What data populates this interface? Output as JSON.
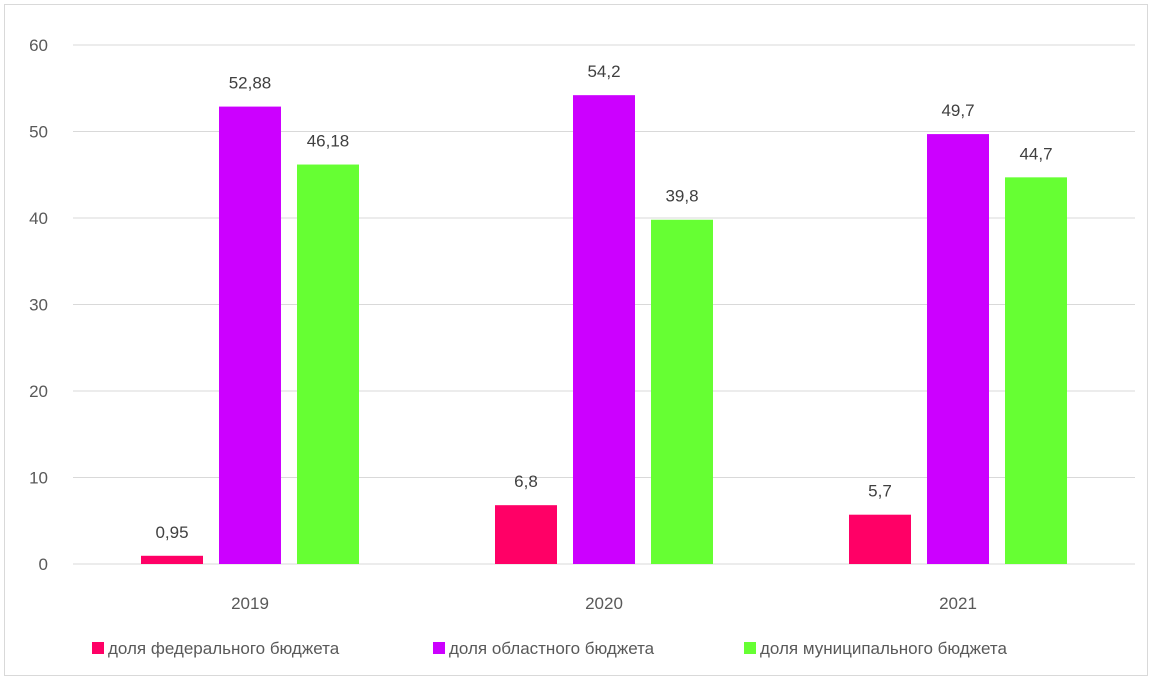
{
  "chart_data": {
    "type": "bar",
    "categories": [
      "2019",
      "2020",
      "2021"
    ],
    "series": [
      {
        "name": "доля федерального бюджета",
        "color": "#ff0066",
        "values": [
          0.95,
          6.8,
          5.7
        ],
        "labels": [
          "0,95",
          "6,8",
          "5,7"
        ]
      },
      {
        "name": "доля областного бюджета",
        "color": "#cc00ff",
        "values": [
          52.88,
          54.2,
          49.7
        ],
        "labels": [
          "52,88",
          "54,2",
          "49,7"
        ]
      },
      {
        "name": "доля муниципального бюджета",
        "color": "#66ff33",
        "values": [
          46.18,
          39.8,
          44.7
        ],
        "labels": [
          "46,18",
          "39,8",
          "44,7"
        ]
      }
    ],
    "ylim": [
      0,
      60
    ],
    "yticks": [
      "0",
      "10",
      "20",
      "30",
      "40",
      "50",
      "60"
    ],
    "grid": true,
    "legend_position": "bottom"
  }
}
